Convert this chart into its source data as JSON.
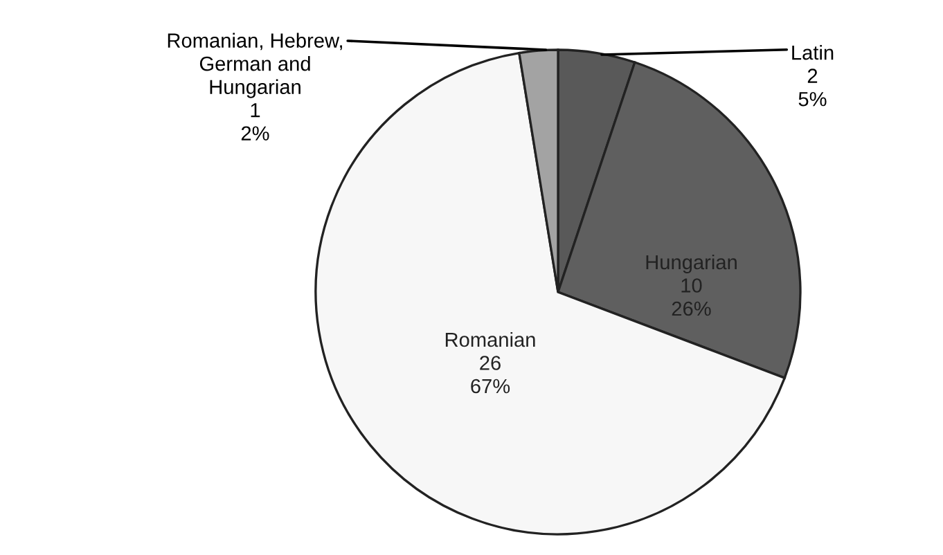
{
  "chart_data": {
    "type": "pie",
    "categories": [
      "Latin",
      "Hungarian",
      "Romanian",
      "Romanian, Hebrew, German and Hungarian"
    ],
    "values": [
      2,
      10,
      26,
      1
    ],
    "value_labels": [
      "2\n5%",
      "10\n26%",
      "26\n67%",
      "1\n2%"
    ],
    "colors": [
      "#595959",
      "#5f5f5f",
      "#f7f7f7",
      "#a3a3a3"
    ]
  }
}
